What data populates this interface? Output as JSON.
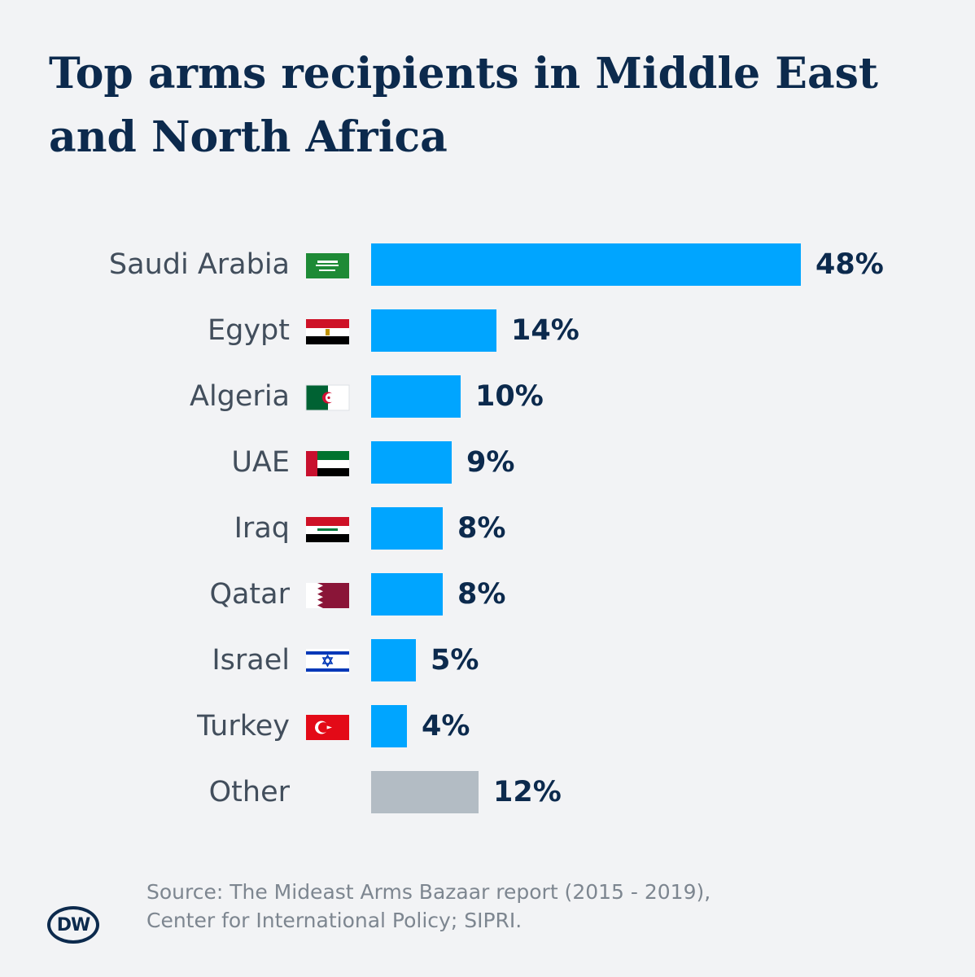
{
  "header": {
    "title": "Top arms recipients in Middle East and North Africa"
  },
  "chart_data": {
    "type": "bar",
    "orientation": "horizontal",
    "categories": [
      "Saudi Arabia",
      "Egypt",
      "Algeria",
      "UAE",
      "Iraq",
      "Qatar",
      "Israel",
      "Turkey",
      "Other"
    ],
    "values": [
      48,
      14,
      10,
      9,
      8,
      8,
      5,
      4,
      12
    ],
    "value_labels": [
      "48%",
      "14%",
      "10%",
      "9%",
      "8%",
      "8%",
      "5%",
      "4%",
      "12%"
    ],
    "flags": [
      "saudi-arabia-flag-icon",
      "egypt-flag-icon",
      "algeria-flag-icon",
      "uae-flag-icon",
      "iraq-flag-icon",
      "qatar-flag-icon",
      "israel-flag-icon",
      "turkey-flag-icon",
      ""
    ],
    "bar_colors": [
      "#00a5ff",
      "#00a5ff",
      "#00a5ff",
      "#00a5ff",
      "#00a5ff",
      "#00a5ff",
      "#00a5ff",
      "#00a5ff",
      "#b3bcc4"
    ],
    "title": "Top arms recipients in Middle East and North Africa",
    "xlabel": "",
    "ylabel": "",
    "xlim": [
      0,
      48
    ],
    "grid": false,
    "legend": "none"
  },
  "footer": {
    "source_line1": "Source: The Mideast Arms Bazaar report (2015 - 2019),",
    "source_line2": "Center for International Policy; SIPRI.",
    "logo_text": "DW"
  },
  "colors": {
    "background": "#f2f3f5",
    "title": "#0c2a4d",
    "bar": "#00a5ff",
    "bar_other": "#b3bcc4",
    "source_text": "#7d8690"
  }
}
